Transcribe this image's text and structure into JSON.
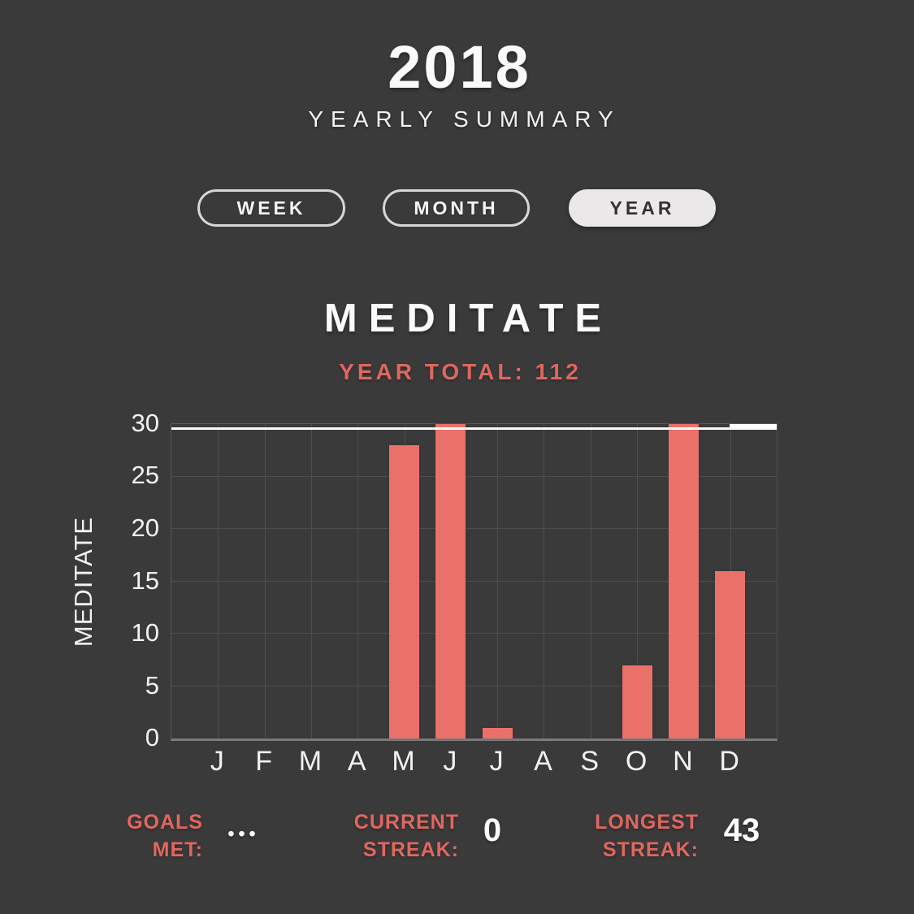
{
  "header": {
    "year": "2018",
    "subtitle": "YEARLY SUMMARY"
  },
  "view_tabs": [
    {
      "label": "WEEK",
      "active": false
    },
    {
      "label": "MONTH",
      "active": false
    },
    {
      "label": "YEAR",
      "active": true
    }
  ],
  "habit": {
    "name": "MEDITATE",
    "year_total_label": "YEAR TOTAL:",
    "year_total_value": "112"
  },
  "chart_data": {
    "type": "bar",
    "title": "MEDITATE",
    "ylabel": "MEDITATE",
    "categories": [
      "J",
      "F",
      "M",
      "A",
      "M",
      "J",
      "J",
      "A",
      "S",
      "O",
      "N",
      "D"
    ],
    "values": [
      0,
      0,
      0,
      0,
      28,
      30,
      1,
      0,
      0,
      7,
      30,
      16
    ],
    "ylim": [
      0,
      30
    ],
    "yticks": [
      0,
      5,
      10,
      15,
      20,
      25,
      30
    ],
    "goal_line": 30,
    "grid": true,
    "legend": "none",
    "bar_color": "#ea716a"
  },
  "stats": [
    {
      "label_line1": "GOALS",
      "label_line2": "MET:",
      "value": "•••"
    },
    {
      "label_line1": "CURRENT",
      "label_line2": "STREAK:",
      "value": "0"
    },
    {
      "label_line1": "LONGEST",
      "label_line2": "STREAK:",
      "value": "43"
    }
  ],
  "colors": {
    "background": "#3b3a3b",
    "accent_bar": "#ea716a",
    "accent_text": "#e0675f",
    "text": "#fbfafa",
    "grid": "#4f4e4f",
    "axis": "#7b7a7b",
    "goal_line": "#fafafa",
    "tab_active_bg": "#eae8e8",
    "tab_active_text": "#333233"
  }
}
